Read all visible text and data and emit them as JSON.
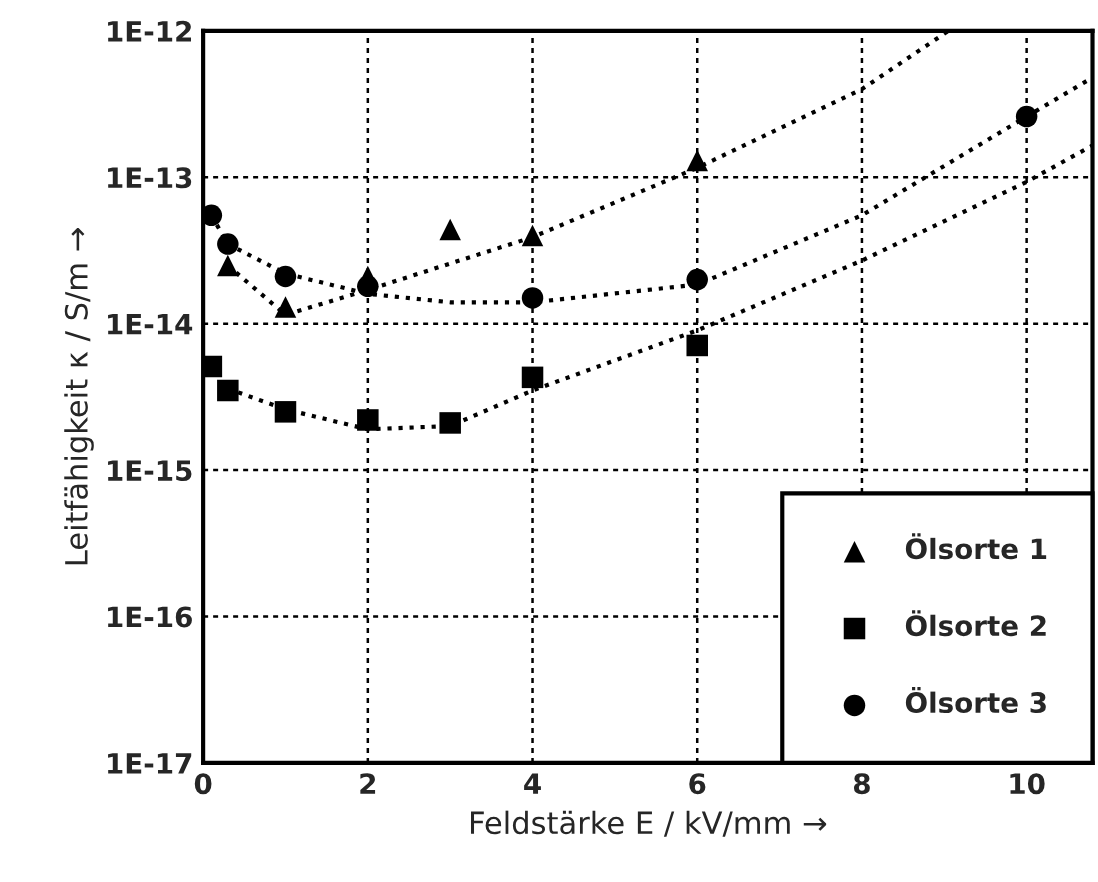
{
  "chart_data": {
    "type": "scatter",
    "xlabel": "Feldstärke E / kV/mm →",
    "ylabel": "Leitfähigkeit κ / S/m →",
    "log": "y",
    "xlim": [
      0,
      10.8
    ],
    "ylim": [
      1e-17,
      1e-12
    ],
    "xticks": [
      0,
      2,
      4,
      6,
      8,
      10
    ],
    "yticks": [
      {
        "value": 1e-17,
        "label": "1E-17"
      },
      {
        "value": 1e-16,
        "label": "1E-16"
      },
      {
        "value": 1e-15,
        "label": "1E-15"
      },
      {
        "value": 1e-14,
        "label": "1E-14"
      },
      {
        "value": 1e-13,
        "label": "1E-13"
      },
      {
        "value": 1e-12,
        "label": "1E-12"
      }
    ],
    "grid": true,
    "legend": "bottom right",
    "series": [
      {
        "name": "Ölsorte 1",
        "marker": "triangle",
        "color": "#000000",
        "x": [
          0.3,
          1,
          2,
          3,
          4,
          6
        ],
        "values": [
          2.5e-14,
          1.3e-14,
          2.1e-14,
          4.4e-14,
          4e-14,
          1.3e-13
        ]
      },
      {
        "name": "Ölsorte 2",
        "marker": "square",
        "color": "#000000",
        "x": [
          0.1,
          0.3,
          1,
          2,
          3,
          4,
          6
        ],
        "values": [
          5.1e-15,
          3.5e-15,
          2.5e-15,
          2.2e-15,
          2.1e-15,
          4.3e-15,
          7.1e-15
        ]
      },
      {
        "name": "Ölsorte 3",
        "marker": "circle",
        "color": "#000000",
        "x": [
          0.1,
          0.3,
          1,
          2,
          4,
          6,
          10
        ],
        "values": [
          5.5e-14,
          3.5e-14,
          2.1e-14,
          1.8e-14,
          1.5e-14,
          2e-14,
          2.6e-13
        ]
      },
      {
        "type": "line",
        "line_style": "dotted",
        "marker": "none",
        "color": "#000000",
        "x": [
          0.3,
          1,
          2,
          4,
          6,
          8,
          9.05
        ],
        "values": [
          2.5e-14,
          1.15e-14,
          1.7e-14,
          3.9e-14,
          1.16e-13,
          4e-13,
          1e-12
        ]
      },
      {
        "type": "line",
        "line_style": "dotted",
        "marker": "none",
        "color": "#000000",
        "x": [
          0.3,
          1,
          2,
          3,
          4,
          6,
          8,
          10,
          10.8
        ],
        "values": [
          3.6e-15,
          2.6e-15,
          1.9e-15,
          2e-15,
          3.5e-15,
          9e-15,
          2.7e-14,
          9.3e-14,
          1.65e-13
        ]
      },
      {
        "type": "line",
        "line_style": "dotted",
        "marker": "none",
        "color": "#000000",
        "x": [
          0.1,
          0.3,
          1,
          2,
          3,
          4,
          6,
          8,
          10,
          10.8
        ],
        "values": [
          5.5e-14,
          3.5e-14,
          2.2e-14,
          1.6e-14,
          1.4e-14,
          1.4e-14,
          1.85e-14,
          5.5e-14,
          2.6e-13,
          4.8e-13
        ]
      }
    ]
  }
}
